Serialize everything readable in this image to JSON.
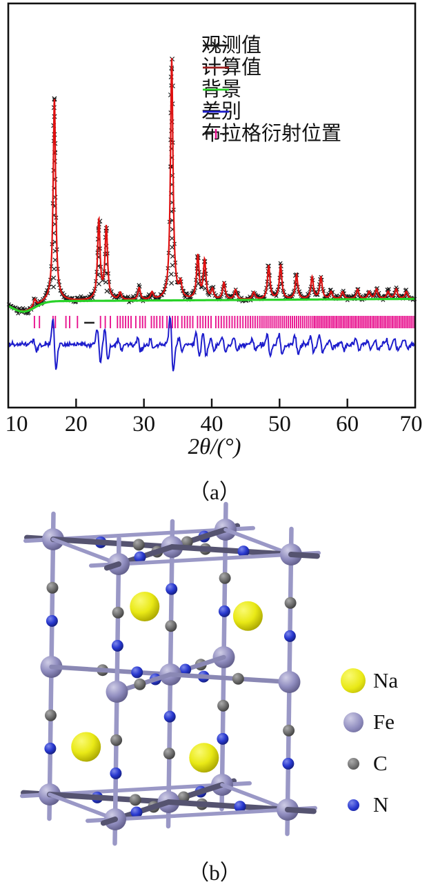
{
  "figure": {
    "panel_a_label": "（a）",
    "panel_b_label": "（b）"
  },
  "chart_data": {
    "type": "line",
    "subtype": "xrd-rietveld-refinement",
    "title": "",
    "xlabel": "2θ/(°)",
    "ylabel": "",
    "x_range": [
      10,
      70
    ],
    "x_ticks": [
      10,
      20,
      30,
      40,
      50,
      60,
      70
    ],
    "grid": false,
    "legend_position": "top-right-inside",
    "colors": {
      "observed": "#1a1a1a",
      "calculated": "#df1010",
      "calculated_legend": "#9b1e1e",
      "background": "#28d228",
      "difference": "#1d1dcc",
      "bragg": "#e8138f",
      "axis": "#111111"
    },
    "legend": [
      {
        "series": "observed",
        "label": "观测值",
        "symbol": "line-x",
        "color": "#1a1a1a"
      },
      {
        "series": "calculated",
        "label": "计算值",
        "symbol": "line",
        "color": "#9b1e1e"
      },
      {
        "series": "background",
        "label": "背景",
        "symbol": "line",
        "color": "#28d228"
      },
      {
        "series": "difference",
        "label": "差别",
        "symbol": "line",
        "color": "#1d1dcc"
      },
      {
        "series": "bragg",
        "label": "布拉格衍射位置",
        "symbol": "dash-tick",
        "color": "#e8138f"
      }
    ],
    "peaks": [
      {
        "two_theta": 13.9,
        "intensity": 3
      },
      {
        "two_theta": 16.8,
        "intensity": 84
      },
      {
        "two_theta": 23.35,
        "intensity": 33
      },
      {
        "two_theta": 24.45,
        "intensity": 30
      },
      {
        "two_theta": 26.5,
        "intensity": 3
      },
      {
        "two_theta": 29.3,
        "intensity": 5
      },
      {
        "two_theta": 31.2,
        "intensity": 3
      },
      {
        "two_theta": 34.1,
        "intensity": 100
      },
      {
        "two_theta": 35.4,
        "intensity": 6
      },
      {
        "two_theta": 37.95,
        "intensity": 18
      },
      {
        "two_theta": 38.95,
        "intensity": 16
      },
      {
        "two_theta": 40.1,
        "intensity": 4
      },
      {
        "two_theta": 41.8,
        "intensity": 7
      },
      {
        "two_theta": 43.5,
        "intensity": 4
      },
      {
        "two_theta": 46.2,
        "intensity": 3
      },
      {
        "two_theta": 48.4,
        "intensity": 14
      },
      {
        "two_theta": 50.15,
        "intensity": 14
      },
      {
        "two_theta": 52.5,
        "intensity": 10
      },
      {
        "two_theta": 54.8,
        "intensity": 9
      },
      {
        "two_theta": 56.1,
        "intensity": 9
      },
      {
        "two_theta": 57.6,
        "intensity": 3
      },
      {
        "two_theta": 59.3,
        "intensity": 3
      },
      {
        "two_theta": 61.5,
        "intensity": 4
      },
      {
        "two_theta": 63.2,
        "intensity": 3
      },
      {
        "two_theta": 64.3,
        "intensity": 4
      },
      {
        "two_theta": 66.0,
        "intensity": 3
      },
      {
        "two_theta": 67.2,
        "intensity": 4
      },
      {
        "two_theta": 68.7,
        "intensity": 3
      }
    ],
    "bragg_ticks": [
      13.85,
      14.6,
      16.6,
      16.95,
      18.5,
      19.05,
      20.2,
      23.6,
      24.3,
      25.05,
      26.1,
      26.5,
      26.9,
      27.3,
      27.7,
      28.1,
      28.8,
      29.4,
      29.8,
      30.2,
      31.1,
      31.5,
      31.9,
      32.35,
      32.75,
      33.4,
      33.8,
      34.2,
      34.6,
      35.0,
      35.6,
      36.0,
      36.4,
      36.8,
      37.2,
      37.9,
      38.3,
      38.7,
      39.1,
      39.5,
      39.9,
      40.6,
      41.0,
      41.4,
      41.8,
      42.2,
      42.6,
      43.0,
      43.4,
      43.8,
      44.2,
      44.6,
      45.0,
      45.35,
      45.7,
      46.05,
      46.4,
      46.75,
      47.1,
      47.4,
      47.7,
      48.0,
      48.3,
      48.6,
      48.9,
      49.2,
      49.5,
      49.8,
      50.1,
      50.4,
      50.7,
      51.0,
      51.3,
      51.6,
      51.9,
      52.2,
      52.5,
      52.8,
      53.1,
      53.4,
      53.7,
      54.0,
      54.3,
      54.6,
      54.9,
      55.15,
      55.4,
      55.65,
      55.9,
      56.15,
      56.4,
      56.65,
      56.9,
      57.15,
      57.4,
      57.65,
      57.9,
      58.15,
      58.4,
      58.65,
      58.9,
      59.15,
      59.4,
      59.65,
      59.9,
      60.15,
      60.4,
      60.65,
      60.9,
      61.15,
      61.4,
      61.65,
      61.9,
      62.15,
      62.4,
      62.65,
      62.9,
      63.15,
      63.4,
      63.65,
      63.9,
      64.15,
      64.4,
      64.65,
      64.9,
      65.15,
      65.4,
      65.65,
      65.9,
      66.15,
      66.4,
      66.65,
      66.9,
      67.15,
      67.4,
      67.65,
      67.9,
      68.15,
      68.4,
      68.65,
      68.9,
      69.15,
      69.4,
      69.65,
      69.9
    ],
    "excluded_dash_range": [
      21.2,
      22.7
    ]
  },
  "structure": {
    "description": "Na-Fe-C-N framework unit cell, ball-and-stick",
    "legend": [
      {
        "element": "Na",
        "color": "#e9e916",
        "highlight": "#fafa72",
        "shadow": "#a8a400",
        "size": "large"
      },
      {
        "element": "Fe",
        "color": "#918ec0",
        "highlight": "#cfcde6",
        "shadow": "#5f5c88",
        "size": "medium"
      },
      {
        "element": "C",
        "color": "#707070",
        "highlight": "#ababab",
        "shadow": "#3d3d3d",
        "size": "small"
      },
      {
        "element": "N",
        "color": "#2838cf",
        "highlight": "#7d88ea",
        "shadow": "#141d7a",
        "size": "small"
      }
    ],
    "na_sites": [
      [
        0.25,
        0.25,
        0.8
      ],
      [
        0.85,
        0.25,
        0.74
      ],
      [
        0.1,
        0.72,
        0.21
      ],
      [
        0.74,
        0.6,
        0.155
      ]
    ]
  }
}
